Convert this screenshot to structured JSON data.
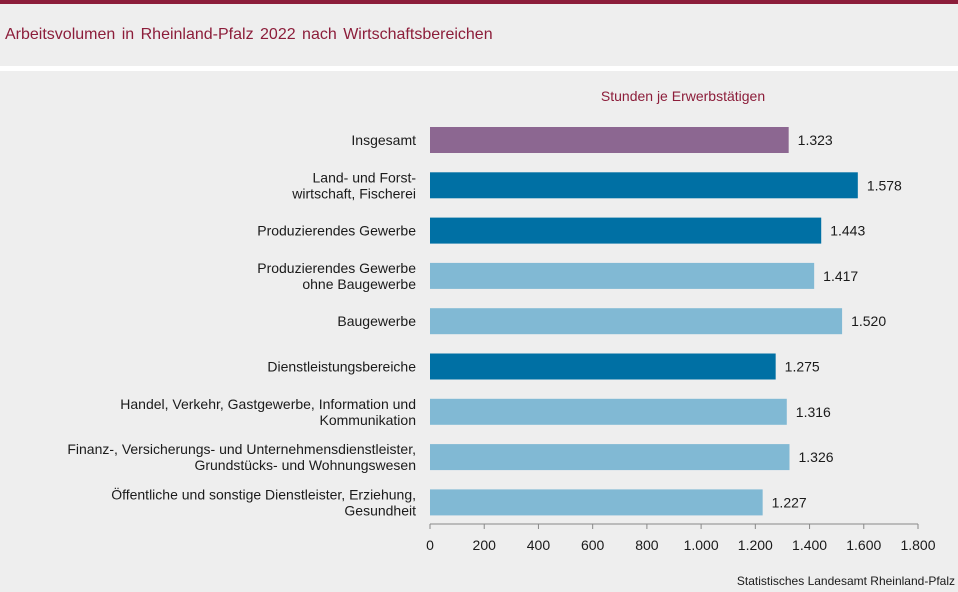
{
  "title": "Arbeitsvolumen  in Rheinland-Pfalz  2022 nach Wirtschaftsbereichen",
  "source": "Statistisches Landesamt Rheinland-Pfalz",
  "colors": {
    "accent": "#8c1d3a",
    "total": "#8c6791",
    "sector": "#0070a4",
    "subsector": "#81b9d4"
  },
  "chart_data": {
    "type": "bar",
    "orientation": "horizontal",
    "series_label": "Stunden je Erwerbstätigen",
    "categories": [
      [
        "Insgesamt"
      ],
      [
        "Land- und Forst-",
        "wirtschaft, Fischerei"
      ],
      [
        "Produzierendes Gewerbe"
      ],
      [
        "Produzierendes Gewerbe",
        "ohne Baugewerbe"
      ],
      [
        "Baugewerbe"
      ],
      [
        "Dienstleistungsbereiche"
      ],
      [
        "Handel, Verkehr, Gastgewerbe, Information und",
        "Kommunikation"
      ],
      [
        "Finanz-, Versicherungs- und Unternehmensdienstleister,",
        "Grundstücks- und Wohnungswesen"
      ],
      [
        "Öffentliche und sonstige Dienstleister, Erziehung,",
        "Gesundheit"
      ]
    ],
    "values": [
      1323,
      1578,
      1443,
      1417,
      1520,
      1275,
      1316,
      1326,
      1227
    ],
    "value_labels": [
      "1.323",
      "1.578",
      "1.443",
      "1.417",
      "1.520",
      "1.275",
      "1.316",
      "1.326",
      "1.227"
    ],
    "bar_types": [
      "total",
      "sector",
      "sector",
      "subsector",
      "subsector",
      "sector",
      "subsector",
      "subsector",
      "subsector"
    ],
    "xlim": [
      0,
      1800
    ],
    "xticks": [
      0,
      200,
      400,
      600,
      800,
      1000,
      1200,
      1400,
      1600,
      1800
    ],
    "xtick_labels": [
      "0",
      "200",
      "400",
      "600",
      "800",
      "1.000",
      "1.200",
      "1.400",
      "1.600",
      "1.800"
    ],
    "grid": false,
    "legend": "none"
  }
}
